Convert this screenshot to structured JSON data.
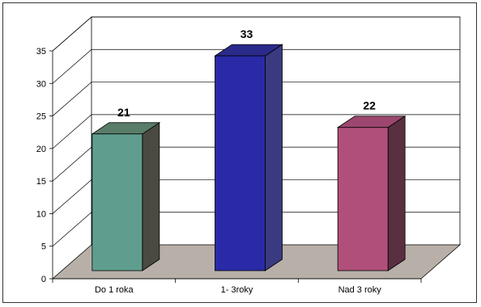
{
  "chart_data": {
    "type": "bar",
    "title": "",
    "xlabel": "",
    "ylabel": "",
    "categories": [
      "Do 1 roka",
      "1- 3roky",
      "Nad 3 roky"
    ],
    "values": [
      21,
      33,
      22
    ],
    "data_labels": [
      "21",
      "33",
      "22"
    ],
    "ylim": [
      0,
      35
    ],
    "yticks": [
      "0",
      "5",
      "10",
      "15",
      "20",
      "25",
      "30",
      "35"
    ],
    "grid": true,
    "legend": "none",
    "style": "3d-column",
    "colors": {
      "bars": [
        "#5f9e8f",
        "#2a2aa8",
        "#b0507a"
      ],
      "bar_sides": [
        "#4a4a40",
        "#3a3a80",
        "#5a3040"
      ],
      "bar_tops": [
        "#5a7d6a",
        "#2a2a8a",
        "#9c4670"
      ],
      "floor": "#b8b0a8",
      "grid": "#000000",
      "axis": "#000000"
    }
  }
}
